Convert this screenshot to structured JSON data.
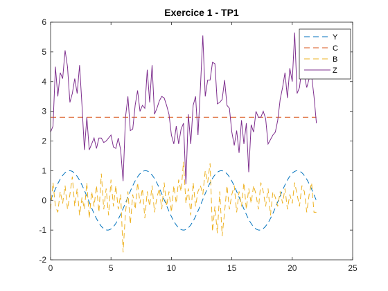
{
  "chart_data": {
    "type": "line",
    "title": "Exercice 1 - TP1",
    "xlabel": "",
    "ylabel": "",
    "xlim": [
      0,
      25
    ],
    "ylim": [
      -2,
      6
    ],
    "xticks": [
      0,
      5,
      10,
      15,
      20,
      25
    ],
    "yticks": [
      -2,
      -1,
      0,
      1,
      2,
      3,
      4,
      5,
      6
    ],
    "grid": false,
    "legend_position": "top-right",
    "series": [
      {
        "name": "Y",
        "color": "#0072BD",
        "style": "dashed",
        "function": "sin",
        "x_range": [
          0,
          22
        ],
        "x_step": 0.1
      },
      {
        "name": "C",
        "color": "#D95319",
        "style": "dashed",
        "x": [
          0,
          22
        ],
        "values": [
          2.8,
          2.8
        ]
      },
      {
        "name": "B",
        "color": "#EDB120",
        "style": "dashed",
        "x": [
          0,
          0.2,
          0.4,
          0.6,
          0.8,
          1.0,
          1.2,
          1.4,
          1.6,
          1.8,
          2.0,
          2.2,
          2.4,
          2.6,
          2.8,
          3.0,
          3.2,
          3.4,
          3.6,
          3.8,
          4.0,
          4.2,
          4.4,
          4.6,
          4.8,
          5.0,
          5.2,
          5.4,
          5.6,
          5.8,
          6.0,
          6.2,
          6.4,
          6.6,
          6.8,
          7.0,
          7.2,
          7.4,
          7.6,
          7.8,
          8.0,
          8.2,
          8.4,
          8.6,
          8.8,
          9.0,
          9.2,
          9.4,
          9.6,
          9.8,
          10.0,
          10.2,
          10.4,
          10.6,
          10.8,
          11.0,
          11.2,
          11.4,
          11.6,
          11.8,
          12.0,
          12.2,
          12.4,
          12.6,
          12.8,
          13.0,
          13.2,
          13.4,
          13.6,
          13.8,
          14.0,
          14.2,
          14.4,
          14.6,
          14.8,
          15.0,
          15.2,
          15.4,
          15.6,
          15.8,
          16.0,
          16.2,
          16.4,
          16.6,
          16.8,
          17.0,
          17.2,
          17.4,
          17.6,
          17.8,
          18.0,
          18.2,
          18.4,
          18.6,
          18.8,
          19.0,
          19.2,
          19.4,
          19.6,
          19.8,
          20.0,
          20.2,
          20.4,
          20.6,
          20.8,
          21.0,
          21.2,
          21.4,
          21.6,
          21.8,
          22.0
        ],
        "values": [
          -0.3,
          0.6,
          -0.2,
          -0.4,
          0.3,
          -0.1,
          0.5,
          -0.3,
          0.2,
          0.8,
          -0.2,
          0.4,
          -0.5,
          0.1,
          -0.3,
          0.6,
          -0.6,
          0.3,
          -0.2,
          0.5,
          -0.4,
          0.9,
          -0.3,
          0.4,
          -0.5,
          0.7,
          -0.2,
          0.5,
          -0.3,
          0.2,
          -1.75,
          -0.4,
          0.3,
          -0.8,
          0.2,
          -0.3,
          0.6,
          -0.1,
          0.4,
          -0.6,
          0.3,
          -0.2,
          0.5,
          -0.4,
          0.1,
          0.4,
          -0.3,
          0.6,
          -0.2,
          0.3,
          -0.4,
          0.5,
          -0.1,
          0.7,
          0.3,
          1.3,
          -0.1,
          0.4,
          -0.5,
          0.6,
          -0.2,
          0.3,
          0.5,
          0.2,
          1.0,
          0.6,
          1.25,
          -1.05,
          -0.2,
          -1.1,
          0.3,
          -1.2,
          -0.4,
          0.5,
          -0.3,
          0.2,
          0.5,
          -0.4,
          0.3,
          -0.2,
          0.6,
          -0.3,
          0.4,
          -0.1,
          0.5,
          0.2,
          -0.3,
          0.6,
          0.3,
          -0.2,
          0.4,
          -0.5,
          0.3,
          0.1,
          -0.2,
          0.3,
          -0.1,
          0.4,
          -0.3,
          0.2,
          -0.1,
          0.6,
          0.2,
          -0.2,
          0.5,
          0.3,
          -0.4,
          0.2,
          0.6,
          -0.4,
          -0.4
        ]
      },
      {
        "name": "Z",
        "color": "#7E2F8E",
        "style": "solid",
        "x": [
          0,
          0.2,
          0.4,
          0.6,
          0.8,
          1.0,
          1.2,
          1.4,
          1.6,
          1.8,
          2.0,
          2.2,
          2.4,
          2.6,
          2.8,
          3.0,
          3.2,
          3.4,
          3.6,
          3.8,
          4.0,
          4.2,
          4.4,
          4.6,
          4.8,
          5.0,
          5.2,
          5.4,
          5.6,
          5.8,
          6.0,
          6.2,
          6.4,
          6.6,
          6.8,
          7.0,
          7.2,
          7.4,
          7.6,
          7.8,
          8.0,
          8.2,
          8.4,
          8.6,
          8.8,
          9.0,
          9.2,
          9.4,
          9.6,
          9.8,
          10.0,
          10.2,
          10.4,
          10.6,
          10.8,
          11.0,
          11.2,
          11.4,
          11.6,
          11.8,
          12.0,
          12.2,
          12.4,
          12.6,
          12.8,
          13.0,
          13.2,
          13.4,
          13.6,
          13.8,
          14.0,
          14.2,
          14.4,
          14.6,
          14.8,
          15.0,
          15.2,
          15.4,
          15.6,
          15.8,
          16.0,
          16.2,
          16.4,
          16.6,
          16.8,
          17.0,
          17.2,
          17.4,
          17.6,
          17.8,
          18.0,
          18.2,
          18.4,
          18.6,
          18.8,
          19.0,
          19.2,
          19.4,
          19.6,
          19.8,
          20.0,
          20.2,
          20.4,
          20.6,
          20.8,
          21.0,
          21.2,
          21.4,
          21.6,
          21.8,
          22.0
        ],
        "values": [
          2.3,
          2.5,
          4.5,
          3.5,
          4.3,
          4.1,
          5.05,
          4.5,
          3.3,
          3.6,
          4.1,
          3.6,
          4.55,
          3.2,
          1.7,
          2.8,
          1.7,
          1.9,
          2.1,
          1.75,
          2.1,
          2.1,
          1.95,
          2.0,
          2.1,
          2.2,
          1.8,
          1.75,
          2.1,
          1.7,
          0.65,
          2.8,
          3.5,
          2.35,
          2.4,
          3.2,
          3.7,
          3.0,
          3.2,
          3.1,
          4.4,
          3.3,
          4.55,
          2.9,
          3.1,
          3.35,
          3.5,
          3.45,
          3.2,
          2.9,
          2.2,
          1.9,
          2.5,
          1.9,
          2.4,
          2.6,
          0.55,
          2.9,
          1.9,
          3.2,
          3.5,
          2.2,
          3.8,
          5.55,
          3.5,
          4.05,
          4.05,
          4.65,
          4.6,
          3.25,
          3.3,
          3.4,
          4.05,
          3.2,
          3.1,
          2.3,
          1.85,
          2.35,
          1.6,
          2.7,
          1.9,
          2.6,
          0.95,
          2.55,
          2.3,
          3.0,
          2.8,
          2.8,
          3.0,
          2.75,
          1.9,
          2.05,
          2.2,
          2.3,
          2.7,
          3.4,
          3.8,
          4.3,
          3.45,
          4.45,
          4.0,
          5.65,
          3.6,
          3.8,
          4.5,
          4.2,
          3.8,
          4.1,
          4.2,
          3.5,
          2.6
        ]
      }
    ]
  }
}
